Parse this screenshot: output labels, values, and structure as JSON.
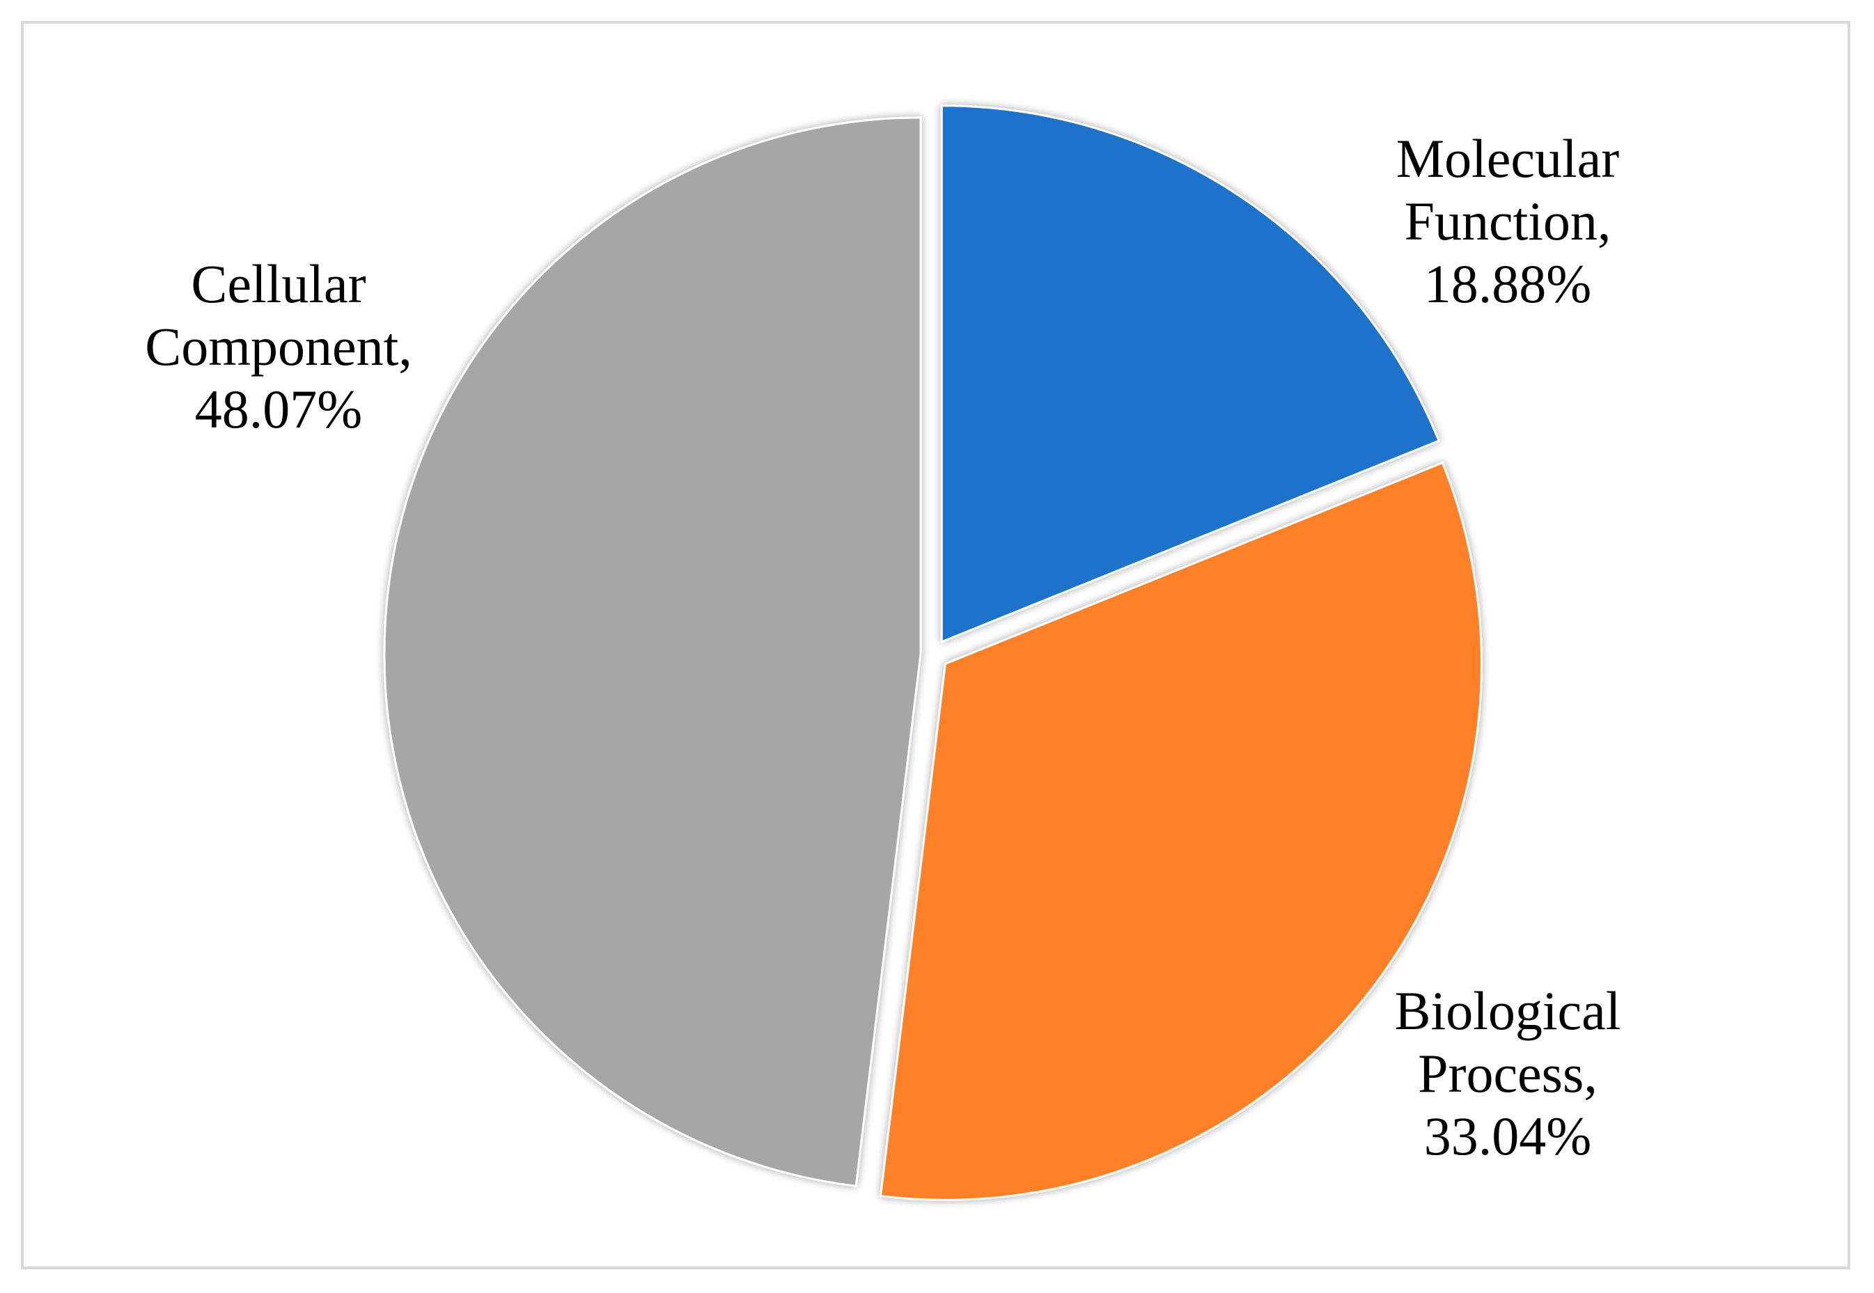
{
  "chart_data": {
    "type": "pie",
    "title": "",
    "categories": [
      "Molecular Function",
      "Biological Process",
      "Cellular Component"
    ],
    "values": [
      18.88,
      33.04,
      48.07
    ],
    "unit": "%",
    "colors": [
      "#1a73c9",
      "#ff8027",
      "#a6a6a6"
    ],
    "exploded": true,
    "start_angle_deg": 0,
    "direction": "clockwise",
    "labels": [
      {
        "lines": [
          "Molecular",
          "Function,",
          "18.88%"
        ]
      },
      {
        "lines": [
          "Biological",
          "Process,",
          "33.04%"
        ]
      },
      {
        "lines": [
          "Cellular",
          "Component,",
          "48.07%"
        ]
      }
    ]
  }
}
